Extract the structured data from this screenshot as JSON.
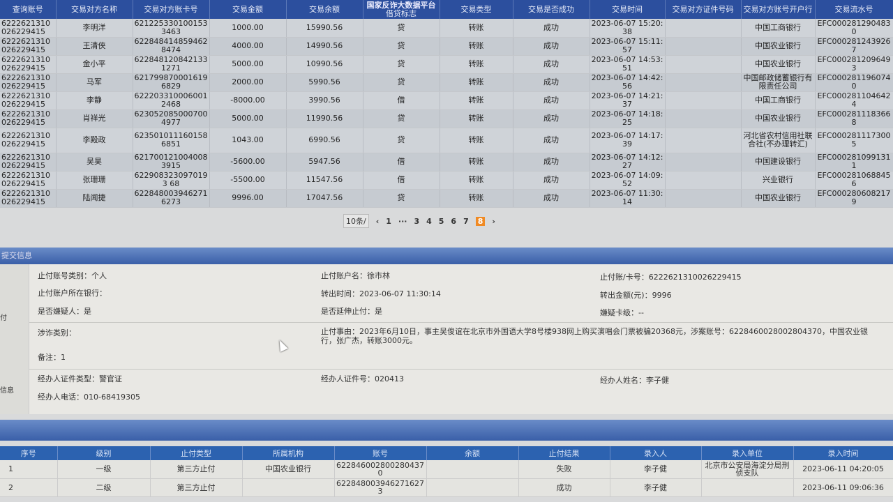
{
  "site_title": "国家反诈大数据平台",
  "transactions": {
    "headers": [
      "查询账号",
      "交易对方名称",
      "交易对方账卡号",
      "交易金额",
      "交易余额",
      "借贷标志",
      "交易类型",
      "交易是否成功",
      "交易时间",
      "交易对方证件号码",
      "交易对方账号开户行",
      "交易流水号"
    ],
    "rows": [
      [
        "6222621310026229415",
        "李明洋",
        "6212253301001533463",
        "1000.00",
        "15990.56",
        "贷",
        "转账",
        "成功",
        "2023-06-07 15:20:38",
        "",
        "中国工商银行",
        "EFC0002812904830"
      ],
      [
        "6222621310026229415",
        "王清侠",
        "6228484148594628474",
        "4000.00",
        "14990.56",
        "贷",
        "转账",
        "成功",
        "2023-06-07 15:11:57",
        "",
        "中国农业银行",
        "EFC0002812439267"
      ],
      [
        "6222621310026229415",
        "金小平",
        "6228481208421331271",
        "5000.00",
        "10990.56",
        "贷",
        "转账",
        "成功",
        "2023-06-07 14:53:51",
        "",
        "中国农业银行",
        "EFC0002812096493"
      ],
      [
        "6222621310026229415",
        "马军",
        "6217998700016196829",
        "2000.00",
        "5990.56",
        "贷",
        "转账",
        "成功",
        "2023-06-07 14:42:56",
        "",
        "中国邮政储蓄银行有限责任公司",
        "EFC0002811960740"
      ],
      [
        "6222621310026229415",
        "李静",
        "6222033100060012468",
        "-8000.00",
        "3990.56",
        "借",
        "转账",
        "成功",
        "2023-06-07 14:21:37",
        "",
        "中国工商银行",
        "EFC0002811046424"
      ],
      [
        "6222621310026229415",
        "肖祥光",
        "6230520850007004977",
        "5000.00",
        "11990.56",
        "贷",
        "转账",
        "成功",
        "2023-06-07 14:18:25",
        "",
        "中国农业银行",
        "EFC0002811183668"
      ],
      [
        "6222621310026229415",
        "李殿政",
        "6235010111601586851",
        "1043.00",
        "6990.56",
        "贷",
        "转账",
        "成功",
        "2023-06-07 14:17:39",
        "",
        "河北省农村信用社联合社(不办理转汇)",
        "EFC0002811173005"
      ],
      [
        "6222621310026229415",
        "吴昊",
        "6217001210040083915",
        "-5600.00",
        "5947.56",
        "借",
        "转账",
        "成功",
        "2023-06-07 14:12:27",
        "",
        "中国建设银行",
        "EFC0002810991311"
      ],
      [
        "6222621310026229415",
        "张珊珊",
        "6229083230970193 68",
        "-5500.00",
        "11547.56",
        "借",
        "转账",
        "成功",
        "2023-06-07 14:09:52",
        "",
        "兴业银行",
        "EFC0002810688456"
      ],
      [
        "6222621310026229415",
        "陆闻捷",
        "6228480039462716273",
        "9996.00",
        "17047.56",
        "贷",
        "转账",
        "成功",
        "2023-06-07 11:30:14",
        "",
        "中国农业银行",
        "EFC0002806082179"
      ]
    ]
  },
  "pagination": {
    "page_size": "10条/",
    "prev": "‹",
    "pages": [
      "1",
      "···",
      "3",
      "4",
      "5",
      "6",
      "7",
      "8"
    ],
    "active": "8",
    "next": "›"
  },
  "submit_section": {
    "title": "提交信息",
    "side_labels": [
      "付",
      "信息"
    ],
    "fields": {
      "acct_type": "止付账号类别：个人",
      "acct_name": "止付账户名：徐市林",
      "card_no": "止付账/卡号：6222621310026229415",
      "bank": "止付账户所在银行：",
      "out_time": "转出时间：2023-06-07 11:30:14",
      "out_amount": "转出金额(元)：9996",
      "suspect": "是否嫌疑人：是",
      "extend": "是否延伸止付：是",
      "card_level": "嫌疑卡级：--",
      "fraud_type": "涉诈类别：",
      "reason": "止付事由：2023年6月10日，事主吴俊谊在北京市外国语大学8号楼938网上购买演唱会门票被骗20368元，涉案账号：6228460028002804370，中国农业银行，张广杰，转账3000元。",
      "note": "备注：1",
      "officer_id_type": "经办人证件类型：警官证",
      "officer_id": "经办人证件号：020413",
      "officer_name": "经办人姓名：李子健",
      "officer_phone": "经办人电话：010-68419305"
    }
  },
  "stop_table": {
    "headers": [
      "序号",
      "级别",
      "止付类型",
      "所属机构",
      "账号",
      "余额",
      "止付结果",
      "录入人",
      "录入单位",
      "录入时间"
    ],
    "rows": [
      [
        "1",
        "一级",
        "第三方止付",
        "中国农业银行",
        "6228460028002804370",
        "",
        "失败",
        "李子健",
        "北京市公安局海淀分局刑侦支队",
        "2023-06-11 04:20:05"
      ],
      [
        "2",
        "二级",
        "第三方止付",
        "",
        "6228480039462716273",
        "",
        "成功",
        "李子健",
        "",
        "2023-06-11 09:06:36"
      ]
    ]
  }
}
